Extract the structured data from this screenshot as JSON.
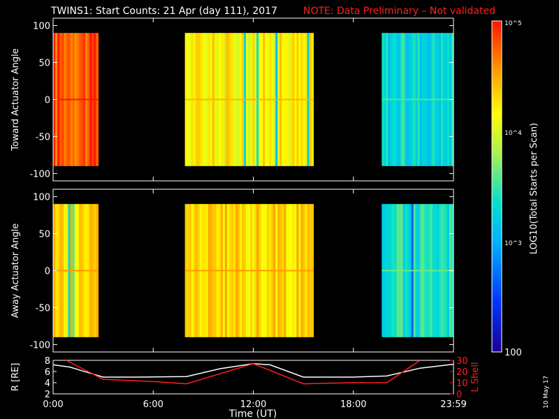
{
  "header": {
    "title": "TWINS1: Start Counts: 21 Apr (day 111), 2017",
    "note": "NOTE: Data Preliminary – Not validated",
    "note_color": "#ff2020"
  },
  "footer": {
    "xlabel": "Time (UT)",
    "date_stamp": "10 May 17"
  },
  "colorbar": {
    "label": "LOG10(Total Starts per Scan)",
    "tick_labels": [
      "100",
      "10^3",
      "10^4",
      "10^5"
    ],
    "log_min": 2,
    "log_max": 5
  },
  "chart_data": [
    {
      "type": "heatmap",
      "ylabel": "Toward Actuator Angle",
      "xlim": [
        0,
        24
      ],
      "ylim": [
        -110,
        110
      ],
      "y_extent": [
        -90,
        90
      ],
      "x_tick_labels": [
        "0:00",
        "6:00",
        "12:00",
        "18:00",
        "23:59"
      ],
      "y_tick_labels": [
        "-100",
        "-50",
        "0",
        "50",
        "100"
      ],
      "data_blocks": [
        {
          "x_start": 0.0,
          "x_end": 2.7,
          "log10_counts": 4.8
        },
        {
          "x_start": 7.9,
          "x_end": 15.6,
          "log10_counts": 4.2
        },
        {
          "x_start": 19.7,
          "x_end": 24.0,
          "log10_counts": 3.3
        }
      ]
    },
    {
      "type": "heatmap",
      "ylabel": "Away Actuator Angle",
      "xlim": [
        0,
        24
      ],
      "ylim": [
        -110,
        110
      ],
      "y_extent": [
        -90,
        90
      ],
      "x_tick_labels": [
        "0:00",
        "6:00",
        "12:00",
        "18:00",
        "23:59"
      ],
      "y_tick_labels": [
        "-100",
        "-50",
        "0",
        "50",
        "100"
      ],
      "data_blocks": [
        {
          "x_start": 0.0,
          "x_end": 2.7,
          "log10_counts": 4.3
        },
        {
          "x_start": 7.9,
          "x_end": 15.6,
          "log10_counts": 4.3
        },
        {
          "x_start": 19.7,
          "x_end": 24.0,
          "log10_counts": 3.4
        }
      ]
    },
    {
      "type": "line",
      "xlabel": "Time (UT)",
      "ylabel_left": "R [RE]",
      "ylabel_right": "L Shell",
      "xlim": [
        0,
        24
      ],
      "ylim_left": [
        2,
        8
      ],
      "ylim_right": [
        0,
        30
      ],
      "left_tick_labels": [
        "2",
        "4",
        "6",
        "8"
      ],
      "right_tick_labels": [
        "0",
        "10",
        "20",
        "30"
      ],
      "x_tick_labels": [
        "0:00",
        "6:00",
        "12:00",
        "18:00",
        "23:59"
      ],
      "series": [
        {
          "name": "R [RE]",
          "color": "#ffffff",
          "axis": "left",
          "x": [
            0,
            1,
            2,
            3,
            5,
            8,
            10,
            12,
            13,
            15,
            18,
            20,
            22,
            24
          ],
          "y": [
            7.2,
            6.8,
            5.9,
            5.0,
            5.0,
            5.1,
            6.5,
            7.4,
            7.2,
            5.0,
            5.0,
            5.2,
            6.6,
            7.3
          ]
        },
        {
          "name": "L Shell",
          "color": "#ff2020",
          "axis": "right",
          "x": [
            0.8,
            3,
            6,
            8,
            12,
            15,
            18,
            20,
            22
          ],
          "y": [
            30,
            13,
            11,
            9,
            27,
            9,
            10,
            10,
            30
          ]
        }
      ]
    }
  ]
}
